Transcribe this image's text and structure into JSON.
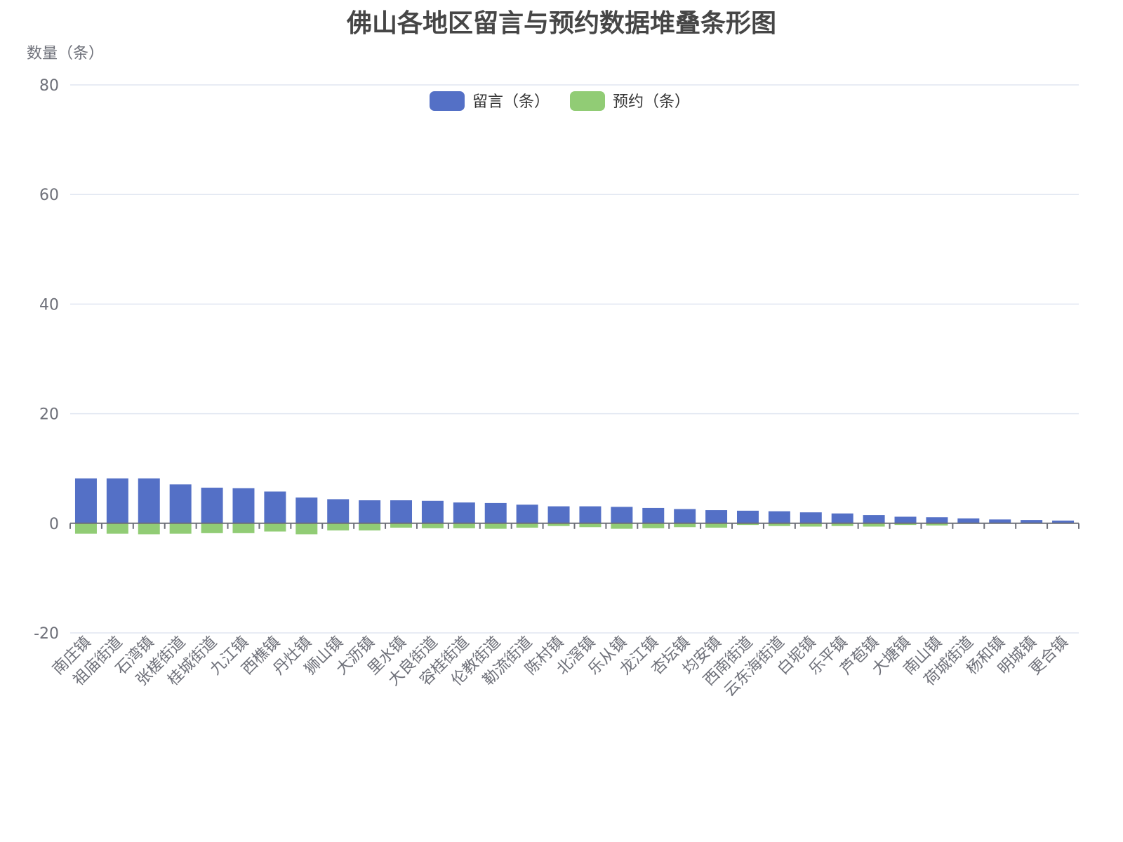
{
  "chart_data": {
    "type": "bar",
    "stacked": true,
    "title": "佛山各地区留言与预约数据堆叠条形图",
    "xlabel": "",
    "ylabel": "数量（条）",
    "ylim": [
      -20,
      80
    ],
    "yticks": [
      80,
      60,
      40,
      20,
      0,
      -20
    ],
    "grid": true,
    "legend_position": "top-center",
    "categories": [
      "南庄镇",
      "祖庙街道",
      "石湾镇",
      "张槎街道",
      "桂城街道",
      "九江镇",
      "西樵镇",
      "丹灶镇",
      "狮山镇",
      "大沥镇",
      "里水镇",
      "大良街道",
      "容桂街道",
      "伦教街道",
      "勒流街道",
      "陈村镇",
      "北滘镇",
      "乐从镇",
      "龙江镇",
      "杏坛镇",
      "均安镇",
      "西南街道",
      "云东海街道",
      "白坭镇",
      "乐平镇",
      "芦苞镇",
      "大塘镇",
      "南山镇",
      "荷城街道",
      "杨和镇",
      "明城镇",
      "更合镇"
    ],
    "series": [
      {
        "name": "留言（条）",
        "color": "#5470c6",
        "values": [
          8.2,
          8.2,
          8.2,
          7.1,
          6.5,
          6.4,
          5.8,
          4.7,
          4.4,
          4.2,
          4.2,
          4.1,
          3.8,
          3.7,
          3.4,
          3.1,
          3.1,
          3.0,
          2.8,
          2.6,
          2.4,
          2.3,
          2.2,
          2.0,
          1.8,
          1.5,
          1.2,
          1.1,
          0.9,
          0.7,
          0.6,
          0.5
        ]
      },
      {
        "name": "预约（条）",
        "color": "#91cc75",
        "values": [
          -1.9,
          -1.9,
          -2.0,
          -1.9,
          -1.8,
          -1.8,
          -1.5,
          -2.0,
          -1.3,
          -1.3,
          -0.8,
          -0.9,
          -0.9,
          -1.0,
          -0.8,
          -0.5,
          -0.7,
          -1.0,
          -0.9,
          -0.7,
          -0.8,
          -0.3,
          -0.5,
          -0.6,
          -0.5,
          -0.6,
          -0.3,
          -0.4,
          -0.1,
          0,
          0,
          0
        ]
      }
    ]
  },
  "colors": {
    "grid": "#e0e6f1",
    "axis": "#6e7079",
    "title": "#464646"
  }
}
